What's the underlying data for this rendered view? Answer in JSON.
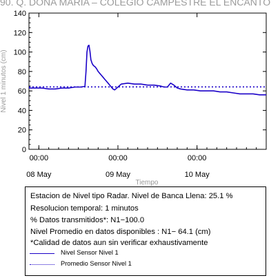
{
  "chart_data": {
    "type": "line",
    "title": "90. Q. DOÑA MARÍA – COLEGIO CAMPESTRE EL ENCANTO",
    "ylabel": "Nivel 1 minutos (cm)",
    "xlabel": "Tiempo",
    "ylim": [
      0,
      140
    ],
    "yticks": [
      0,
      20,
      40,
      60,
      80,
      100,
      120,
      140
    ],
    "xlim": [
      0,
      72
    ],
    "xticks": [
      {
        "x": 3,
        "time": "00:00",
        "date": "08 May"
      },
      {
        "x": 27,
        "time": "00:00",
        "date": "09 May"
      },
      {
        "x": 51,
        "time": "00:00",
        "date": "10 May"
      }
    ],
    "series": [
      {
        "name": "Nivel Sensor Nivel 1",
        "color": "#1a00c8",
        "style": "solid",
        "x": [
          0,
          2,
          4,
          6,
          8,
          10,
          12,
          14,
          16,
          17,
          17.3,
          17.6,
          17.9,
          18.2,
          18.5,
          18.8,
          19.2,
          19.6,
          20,
          20.5,
          21,
          21.5,
          22,
          22.5,
          23,
          23.5,
          24,
          24.5,
          25,
          25.5,
          26,
          27,
          28,
          30,
          32,
          34,
          36,
          38,
          40,
          41,
          42,
          43,
          44,
          45,
          46,
          48,
          50,
          52,
          54,
          56,
          58,
          60,
          62,
          64,
          66,
          68,
          70,
          72
        ],
        "y": [
          63,
          63,
          63,
          62,
          62,
          63,
          63,
          64,
          64,
          65,
          80,
          100,
          106,
          107,
          101,
          92,
          88,
          86,
          85,
          83,
          80,
          78,
          76,
          74,
          72,
          70,
          68,
          66,
          64,
          62,
          61,
          64,
          67,
          68,
          67,
          67,
          66,
          66,
          65,
          64,
          64,
          68,
          66,
          63,
          62,
          61,
          61,
          60,
          60,
          60,
          59,
          59,
          58,
          57,
          57,
          57,
          56,
          56
        ]
      },
      {
        "name": "Promedio Sensor Nivel 1",
        "color": "#1a00c8",
        "style": "dotted",
        "x": [
          0,
          72
        ],
        "y": [
          64.1,
          64.1
        ]
      }
    ],
    "grid": false
  },
  "info": {
    "lines": [
      "Estacion de Nivel tipo Radar. Nivel de Banca Llena: 25.1 %",
      "Resolucion temporal: 1 minutos",
      "% Datos transmitidos*: N1−100.0",
      "Nivel Promedio en datos disponibles : N1− 64.1 (cm)",
      "*Calidad de datos aun sin verificar exhaustivamente"
    ],
    "legend": [
      {
        "label": "Nivel Sensor Nivel 1",
        "style": "solid",
        "color": "#1a00c8"
      },
      {
        "label": "Promedio Sensor Nivel 1",
        "style": "dotted",
        "color": "#1a00c8"
      }
    ]
  }
}
